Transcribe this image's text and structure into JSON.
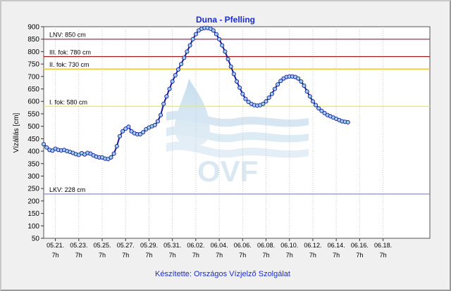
{
  "chart_data": {
    "type": "line",
    "title": "Duna - Pfelling",
    "ylabel": "Vízállás [cm]",
    "xlabel": "",
    "credit": "Készítette: Országos Vízjelző Szolgálat",
    "ylim": [
      50,
      900
    ],
    "yticks": [
      50,
      100,
      150,
      200,
      250,
      300,
      350,
      400,
      450,
      500,
      550,
      600,
      650,
      700,
      750,
      800,
      850,
      900
    ],
    "xlim": [
      0,
      33
    ],
    "xticks": [
      {
        "x": 1,
        "date": "05.21.",
        "hour": "7h"
      },
      {
        "x": 3,
        "date": "05.23.",
        "hour": "7h"
      },
      {
        "x": 5,
        "date": "05.25.",
        "hour": "7h"
      },
      {
        "x": 7,
        "date": "05.27.",
        "hour": "7h"
      },
      {
        "x": 9,
        "date": "05.29.",
        "hour": "7h"
      },
      {
        "x": 11,
        "date": "05.31.",
        "hour": "7h"
      },
      {
        "x": 13,
        "date": "06.02.",
        "hour": "7h"
      },
      {
        "x": 15,
        "date": "06.04.",
        "hour": "7h"
      },
      {
        "x": 17,
        "date": "06.06.",
        "hour": "7h"
      },
      {
        "x": 19,
        "date": "06.08.",
        "hour": "7h"
      },
      {
        "x": 21,
        "date": "06.10.",
        "hour": "7h"
      },
      {
        "x": 23,
        "date": "06.12.",
        "hour": "7h"
      },
      {
        "x": 25,
        "date": "06.14.",
        "hour": "7h"
      },
      {
        "x": 27,
        "date": "06.16.",
        "hour": "7h"
      },
      {
        "x": 29,
        "date": "06.18.",
        "hour": "7h"
      }
    ],
    "reference_lines": [
      {
        "label": "LNV: 850 cm",
        "value": 850,
        "color": "#c8326e"
      },
      {
        "label": "III. fok: 780 cm",
        "value": 780,
        "color": "#a01818"
      },
      {
        "label": "II. fok: 730 cm",
        "value": 730,
        "color": "#e8c020"
      },
      {
        "label": "I. fok: 580 cm",
        "value": 580,
        "color": "#f0f040"
      },
      {
        "label": "LKV: 228 cm",
        "value": 228,
        "color": "#8a8ad8"
      }
    ],
    "series": [
      {
        "color": "#1a1a9a",
        "marker_color": "#9ad0f0",
        "points": [
          [
            0.0,
            428
          ],
          [
            0.25,
            415
          ],
          [
            0.5,
            405
          ],
          [
            0.75,
            402
          ],
          [
            1.0,
            410
          ],
          [
            1.25,
            405
          ],
          [
            1.5,
            403
          ],
          [
            1.75,
            405
          ],
          [
            2.0,
            400
          ],
          [
            2.25,
            397
          ],
          [
            2.5,
            393
          ],
          [
            2.75,
            388
          ],
          [
            3.0,
            385
          ],
          [
            3.25,
            392
          ],
          [
            3.5,
            387
          ],
          [
            3.75,
            393
          ],
          [
            4.0,
            390
          ],
          [
            4.25,
            383
          ],
          [
            4.5,
            378
          ],
          [
            4.75,
            375
          ],
          [
            5.0,
            375
          ],
          [
            5.25,
            370
          ],
          [
            5.5,
            368
          ],
          [
            5.75,
            375
          ],
          [
            6.0,
            390
          ],
          [
            6.25,
            420
          ],
          [
            6.5,
            460
          ],
          [
            6.75,
            480
          ],
          [
            7.0,
            490
          ],
          [
            7.25,
            498
          ],
          [
            7.5,
            480
          ],
          [
            7.75,
            472
          ],
          [
            8.0,
            468
          ],
          [
            8.25,
            468
          ],
          [
            8.5,
            476
          ],
          [
            8.75,
            488
          ],
          [
            9.0,
            495
          ],
          [
            9.25,
            500
          ],
          [
            9.5,
            505
          ],
          [
            9.75,
            520
          ],
          [
            10.0,
            545
          ],
          [
            10.25,
            590
          ],
          [
            10.5,
            620
          ],
          [
            10.75,
            650
          ],
          [
            11.0,
            680
          ],
          [
            11.25,
            705
          ],
          [
            11.5,
            728
          ],
          [
            11.75,
            750
          ],
          [
            12.0,
            775
          ],
          [
            12.25,
            800
          ],
          [
            12.5,
            825
          ],
          [
            12.75,
            850
          ],
          [
            13.0,
            870
          ],
          [
            13.25,
            885
          ],
          [
            13.5,
            892
          ],
          [
            13.75,
            895
          ],
          [
            14.0,
            895
          ],
          [
            14.25,
            892
          ],
          [
            14.5,
            885
          ],
          [
            14.75,
            870
          ],
          [
            15.0,
            850
          ],
          [
            15.25,
            825
          ],
          [
            15.5,
            800
          ],
          [
            15.75,
            770
          ],
          [
            16.0,
            740
          ],
          [
            16.25,
            710
          ],
          [
            16.5,
            680
          ],
          [
            16.75,
            655
          ],
          [
            17.0,
            630
          ],
          [
            17.25,
            610
          ],
          [
            17.5,
            598
          ],
          [
            17.75,
            590
          ],
          [
            18.0,
            585
          ],
          [
            18.25,
            583
          ],
          [
            18.5,
            585
          ],
          [
            18.75,
            590
          ],
          [
            19.0,
            600
          ],
          [
            19.25,
            615
          ],
          [
            19.5,
            630
          ],
          [
            19.75,
            650
          ],
          [
            20.0,
            668
          ],
          [
            20.25,
            682
          ],
          [
            20.5,
            692
          ],
          [
            20.75,
            698
          ],
          [
            21.0,
            700
          ],
          [
            21.25,
            700
          ],
          [
            21.5,
            698
          ],
          [
            21.75,
            692
          ],
          [
            22.0,
            680
          ],
          [
            22.25,
            663
          ],
          [
            22.5,
            640
          ],
          [
            22.75,
            620
          ],
          [
            23.0,
            600
          ],
          [
            23.25,
            585
          ],
          [
            23.5,
            572
          ],
          [
            23.75,
            562
          ],
          [
            24.0,
            553
          ],
          [
            24.25,
            545
          ],
          [
            24.5,
            540
          ],
          [
            24.75,
            535
          ],
          [
            25.0,
            530
          ],
          [
            25.25,
            525
          ],
          [
            25.5,
            520
          ],
          [
            25.75,
            518
          ],
          [
            26.0,
            516
          ]
        ]
      }
    ]
  }
}
